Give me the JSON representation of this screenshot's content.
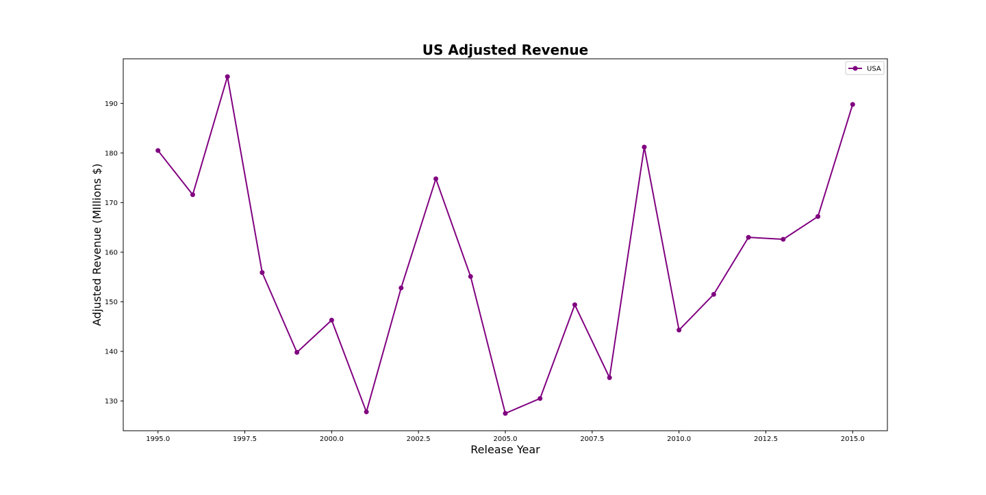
{
  "chart_data": {
    "type": "line",
    "title": "US Adjusted Revenue",
    "xlabel": "Release Year",
    "ylabel": "Adjusted Revenue (MIllions $)",
    "xlim": [
      1994.0,
      2016.0
    ],
    "ylim": [
      124.0,
      199.0
    ],
    "x_ticks": [
      1995.0,
      1997.5,
      2000.0,
      2002.5,
      2005.0,
      2007.5,
      2010.0,
      2012.5,
      2015.0
    ],
    "x_tick_labels": [
      "1995.0",
      "1997.5",
      "2000.0",
      "2002.5",
      "2005.0",
      "2007.5",
      "2010.0",
      "2012.5",
      "2015.0"
    ],
    "y_ticks": [
      130,
      140,
      150,
      160,
      170,
      180,
      190
    ],
    "y_tick_labels": [
      "130",
      "140",
      "150",
      "160",
      "170",
      "180",
      "190"
    ],
    "grid": false,
    "legend_position": "top-right",
    "series": [
      {
        "name": "USA",
        "color": "#800080",
        "marker": "circle",
        "x": [
          1995,
          1996,
          1997,
          1998,
          1999,
          2000,
          2001,
          2002,
          2003,
          2004,
          2005,
          2006,
          2007,
          2008,
          2009,
          2010,
          2011,
          2012,
          2013,
          2014,
          2015
        ],
        "y": [
          180.5,
          171.6,
          195.4,
          155.9,
          139.8,
          146.3,
          127.8,
          152.8,
          174.8,
          155.1,
          127.5,
          130.5,
          149.4,
          134.7,
          181.2,
          144.3,
          151.5,
          163.0,
          162.6,
          167.2,
          189.8
        ]
      }
    ]
  }
}
